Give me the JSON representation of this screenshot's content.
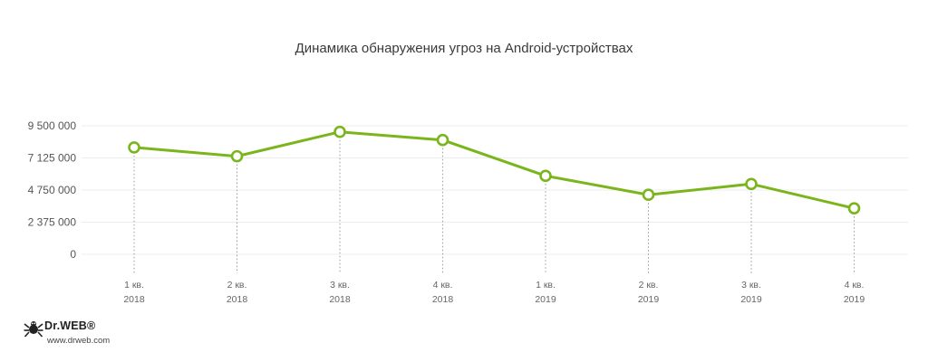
{
  "chart_data": {
    "type": "line",
    "title": "Динамика обнаружения угроз на Android-устройствах",
    "xlabel": "",
    "ylabel": "",
    "y_ticks": [
      "9 500 000",
      "7 125 000",
      "4 750 000",
      "2 375 000",
      "0"
    ],
    "ylim": [
      0,
      9500000
    ],
    "categories": [
      [
        "1 кв.",
        "2018"
      ],
      [
        "2 кв.",
        "2018"
      ],
      [
        "3 кв.",
        "2018"
      ],
      [
        "4 кв.",
        "2018"
      ],
      [
        "1 кв.",
        "2019"
      ],
      [
        "2 кв.",
        "2019"
      ],
      [
        "3 кв.",
        "2019"
      ],
      [
        "4 кв.",
        "2019"
      ]
    ],
    "series": [
      {
        "values": [
          7900000,
          7250000,
          9050000,
          8450000,
          5800000,
          4400000,
          5200000,
          3400000
        ],
        "color": "#7ab51d"
      }
    ],
    "grid": true,
    "legend": "none"
  },
  "logo": {
    "brand": "Dr.WEB",
    "url": "www.drweb.com",
    "icon": "spider-icon"
  }
}
